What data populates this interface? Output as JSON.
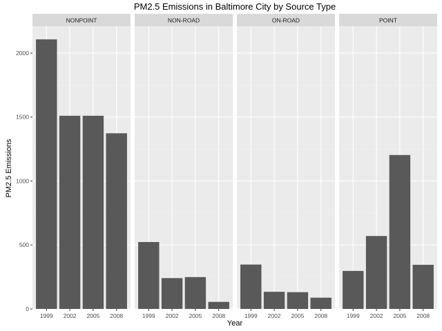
{
  "chart_data": {
    "type": "bar",
    "title": "PM2.5 Emissions in Baltimore City by Source Type",
    "xlabel": "Year",
    "ylabel": "PM2.5 Emissions",
    "categories": [
      "1999",
      "2002",
      "2005",
      "2008"
    ],
    "ylim": [
      0,
      2210
    ],
    "yticks": [
      0,
      500,
      1000,
      1500,
      2000
    ],
    "grid": true,
    "panels": [
      {
        "name": "NONPOINT",
        "values": [
          2107,
          1510,
          1510,
          1373
        ]
      },
      {
        "name": "NON-ROAD",
        "values": [
          523,
          241,
          249,
          55
        ]
      },
      {
        "name": "ON-ROAD",
        "values": [
          347,
          134,
          131,
          88
        ]
      },
      {
        "name": "POINT",
        "values": [
          297,
          570,
          1203,
          345
        ]
      }
    ],
    "colors": {
      "bar": "#595959",
      "panel_bg": "#ebebeb",
      "strip_bg": "#d9d9d9",
      "grid_major": "#ffffff",
      "grid_minor": "#f2f2f2"
    }
  }
}
